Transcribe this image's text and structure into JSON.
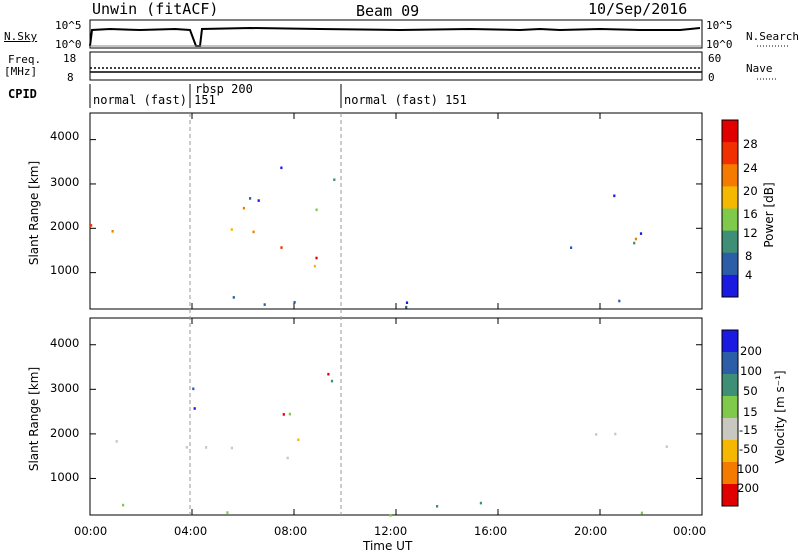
{
  "header": {
    "station": "Unwin (fitACF)",
    "beam": "Beam 09",
    "date": "10/Sep/2016"
  },
  "top_panels": {
    "nsky_label": "N.Sky",
    "nsky_ticks": [
      "10^5",
      "10^0"
    ],
    "nsearch_label": "N.Search",
    "nsearch_ticks": [
      "10^5",
      "10^0"
    ],
    "freq_label": "Freq.",
    "freq_unit": "[MHz]",
    "freq_ticks": [
      "18",
      "8"
    ],
    "nave_label": "Nave",
    "nave_ticks": [
      "60",
      "0"
    ],
    "cpid_label": "CPID",
    "cpid_segments": [
      {
        "label": "normal (fast) 151",
        "start_h": 0.0,
        "end_h": 4.0
      },
      {
        "label": "rbsp 200",
        "start_h": 4.0,
        "end_h": 10.0
      },
      {
        "label": "normal (fast) 151",
        "start_h": 10.0,
        "end_h": 24.0
      }
    ]
  },
  "chart_data": [
    {
      "type": "heatmap",
      "name": "power-panel",
      "ylabel": "Slant Range [km]",
      "x_range_h": [
        0,
        24
      ],
      "ylim": [
        180,
        4600
      ],
      "yticks": [
        "1000",
        "2000",
        "3000",
        "4000"
      ],
      "colorbar_label": "Power [dB]",
      "colorbar_ticks": [
        "28",
        "24",
        "20",
        "16",
        "12",
        "8",
        "4"
      ],
      "colorbar_colors": [
        "#e00000",
        "#f03000",
        "#f57a00",
        "#f5b800",
        "#7fc94b",
        "#3f8f76",
        "#2c5ea8",
        "#1a1ae0"
      ],
      "scatter_regions": [
        {
          "t0": 0.0,
          "t1": 4.0,
          "r0": 1450,
          "r1": 2150,
          "level": "high"
        },
        {
          "t0": 4.2,
          "t1": 8.2,
          "r0": 1400,
          "r1": 2200,
          "level": "high"
        },
        {
          "t0": 7.0,
          "t1": 9.6,
          "r0": 800,
          "r1": 1600,
          "level": "high"
        },
        {
          "t0": 4.0,
          "t1": 10.0,
          "r0": 2300,
          "r1": 3500,
          "level": "mixed"
        },
        {
          "t0": 18.5,
          "t1": 24.0,
          "r0": 1400,
          "r1": 2100,
          "level": "low"
        },
        {
          "t0": 20.0,
          "t1": 21.5,
          "r0": 1700,
          "r1": 3300,
          "level": "mixed"
        },
        {
          "t0": 0.0,
          "t1": 24.0,
          "r0": 200,
          "r1": 500,
          "level": "low"
        }
      ]
    },
    {
      "type": "heatmap",
      "name": "velocity-panel",
      "ylabel": "Slant Range [km]",
      "x_range_h": [
        0,
        24
      ],
      "ylim": [
        180,
        4600
      ],
      "yticks": [
        "1000",
        "2000",
        "3000",
        "4000"
      ],
      "xticks": [
        "00:00",
        "04:00",
        "08:00",
        "12:00",
        "16:00",
        "20:00",
        "00:00"
      ],
      "xlabel": "Time UT",
      "colorbar_label": "Velocity [m s⁻¹]",
      "colorbar_ticks": [
        "200",
        "100",
        "50",
        "15",
        "-15",
        "-50",
        "-100",
        "-200"
      ],
      "colorbar_colors": [
        "#1a1ae0",
        "#2c5ea8",
        "#3f8f76",
        "#7fc94b",
        "#c8c8c0",
        "#f5b800",
        "#f57a00",
        "#e00000"
      ],
      "scatter_regions": [
        {
          "t0": 0.0,
          "t1": 4.0,
          "r0": 1450,
          "r1": 2150,
          "level": "ground"
        },
        {
          "t0": 4.2,
          "t1": 8.2,
          "r0": 1400,
          "r1": 2200,
          "level": "ground"
        },
        {
          "t0": 8.0,
          "t1": 9.6,
          "r0": 900,
          "r1": 1900,
          "level": "negative"
        },
        {
          "t0": 4.0,
          "t1": 10.0,
          "r0": 2300,
          "r1": 3500,
          "level": "mixed"
        },
        {
          "t0": 18.5,
          "t1": 24.0,
          "r0": 1400,
          "r1": 2100,
          "level": "ground"
        },
        {
          "t0": 0.0,
          "t1": 24.0,
          "r0": 200,
          "r1": 500,
          "level": "positive"
        }
      ]
    }
  ]
}
